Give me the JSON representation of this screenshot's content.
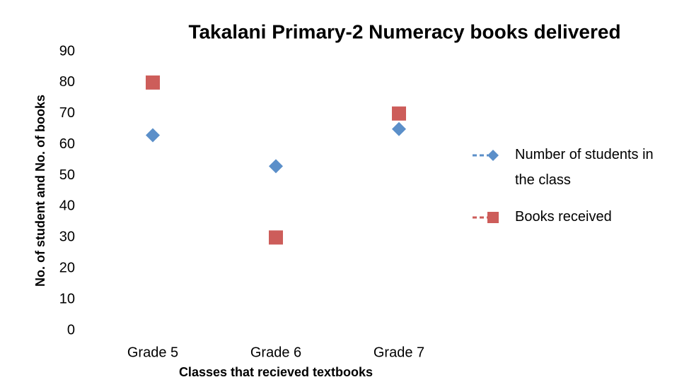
{
  "chart_data": {
    "type": "scatter",
    "title": "Takalani Primary-2 Numeracy books delivered",
    "x_label": "Classes that recieved textbooks",
    "y_label": "No. of student and No. of books",
    "categories": [
      "Grade 5",
      "Grade 6",
      "Grade 7"
    ],
    "series": [
      {
        "name": "Number of students in the class",
        "color": "#5b8fc9",
        "marker": "diamond",
        "values": [
          63,
          53,
          65
        ]
      },
      {
        "name": "Books received",
        "color": "#cd5d5a",
        "marker": "square",
        "values": [
          80,
          30,
          70
        ]
      }
    ],
    "ylim": [
      0,
      90
    ],
    "yticks": [
      0,
      10,
      20,
      30,
      40,
      50,
      60,
      70,
      80,
      90
    ],
    "grid": false,
    "legend": "right"
  }
}
